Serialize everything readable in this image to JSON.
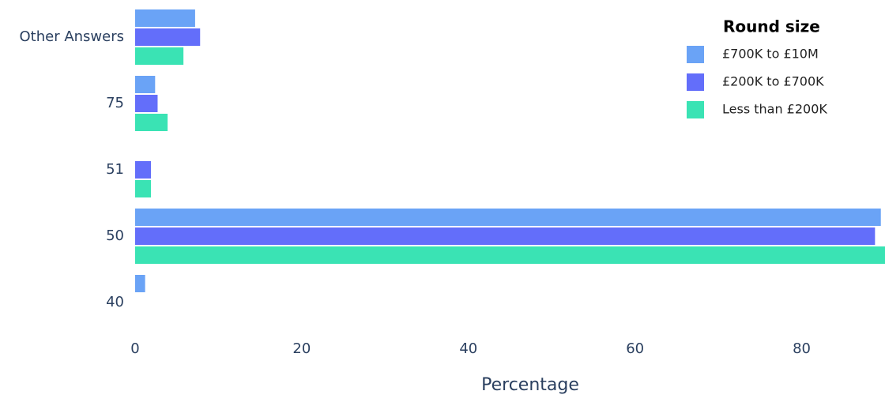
{
  "chart_data": {
    "type": "bar",
    "orientation": "horizontal",
    "categories": [
      "Other Answers",
      "75",
      "51",
      "50",
      "40"
    ],
    "series": [
      {
        "name": "£700K to £10M",
        "color": "#6aa3f6",
        "values": [
          7.2,
          2.4,
          null,
          89.5,
          1.2
        ]
      },
      {
        "name": "£200K to £700K",
        "color": "#636efa",
        "values": [
          7.8,
          2.7,
          1.9,
          88.8,
          null
        ]
      },
      {
        "name": "Less than £200K",
        "color": "#3ae3b4",
        "values": [
          5.8,
          3.9,
          1.9,
          90.5,
          null
        ]
      }
    ],
    "xlabel": "Percentage",
    "legend_title": "Round size",
    "legend_position": "top-right",
    "xlim": [
      0,
      90
    ],
    "xticks": [
      0,
      20,
      40,
      60,
      80
    ],
    "grid": false
  }
}
